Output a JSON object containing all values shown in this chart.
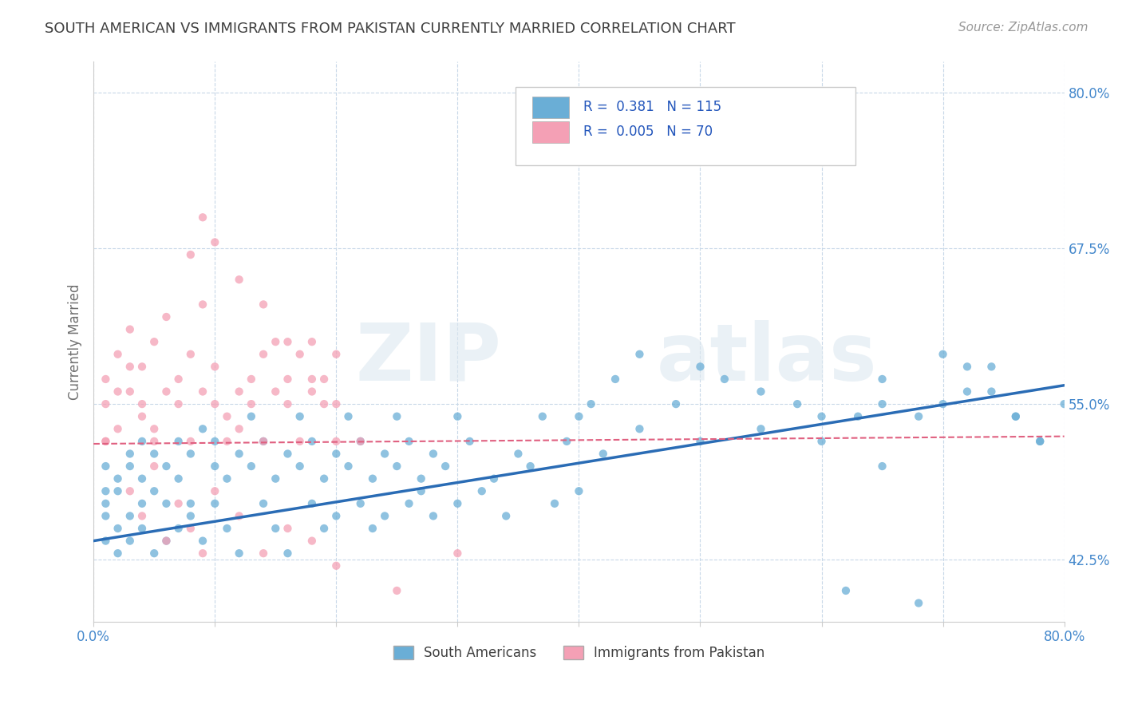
{
  "title": "SOUTH AMERICAN VS IMMIGRANTS FROM PAKISTAN CURRENTLY MARRIED CORRELATION CHART",
  "source": "Source: ZipAtlas.com",
  "ylabel": "Currently Married",
  "xmin": 0.0,
  "xmax": 0.8,
  "ymin": 0.375,
  "ymax": 0.825,
  "yticks": [
    0.425,
    0.55,
    0.675,
    0.8
  ],
  "ytick_labels": [
    "42.5%",
    "55.0%",
    "67.5%",
    "80.0%"
  ],
  "xticks": [
    0.0,
    0.1,
    0.2,
    0.3,
    0.4,
    0.5,
    0.6,
    0.7,
    0.8
  ],
  "xtick_labels": [
    "0.0%",
    "",
    "",
    "",
    "",
    "",
    "",
    "",
    "80.0%"
  ],
  "blue_color": "#6aaed6",
  "pink_color": "#f4a0b5",
  "blue_line_color": "#2a6cb5",
  "pink_line_color": "#e06080",
  "title_color": "#404040",
  "axis_label_color": "#707070",
  "tick_label_color": "#4488cc",
  "grid_color": "#c8d8e8",
  "legend_R_blue": "0.381",
  "legend_N_blue": "115",
  "legend_R_pink": "0.005",
  "legend_N_pink": "70",
  "legend_label_blue": "South Americans",
  "legend_label_pink": "Immigrants from Pakistan",
  "blue_trend_x": [
    0.0,
    0.8
  ],
  "blue_trend_y": [
    0.44,
    0.565
  ],
  "pink_trend_x": [
    0.0,
    0.8
  ],
  "pink_trend_y": [
    0.518,
    0.524
  ],
  "blue_scatter_x": [
    0.01,
    0.01,
    0.01,
    0.01,
    0.01,
    0.02,
    0.02,
    0.02,
    0.02,
    0.03,
    0.03,
    0.03,
    0.03,
    0.04,
    0.04,
    0.04,
    0.04,
    0.05,
    0.05,
    0.05,
    0.06,
    0.06,
    0.06,
    0.07,
    0.07,
    0.07,
    0.08,
    0.08,
    0.08,
    0.09,
    0.09,
    0.1,
    0.1,
    0.1,
    0.11,
    0.11,
    0.12,
    0.12,
    0.13,
    0.13,
    0.14,
    0.14,
    0.15,
    0.15,
    0.16,
    0.16,
    0.17,
    0.17,
    0.18,
    0.18,
    0.19,
    0.19,
    0.2,
    0.2,
    0.21,
    0.21,
    0.22,
    0.22,
    0.23,
    0.23,
    0.24,
    0.24,
    0.25,
    0.25,
    0.26,
    0.26,
    0.27,
    0.27,
    0.28,
    0.28,
    0.29,
    0.3,
    0.3,
    0.31,
    0.32,
    0.33,
    0.34,
    0.35,
    0.36,
    0.37,
    0.38,
    0.39,
    0.4,
    0.41,
    0.42,
    0.43,
    0.45,
    0.48,
    0.5,
    0.52,
    0.55,
    0.58,
    0.6,
    0.63,
    0.65,
    0.7,
    0.72,
    0.74,
    0.76,
    0.78,
    0.8,
    0.4,
    0.45,
    0.5,
    0.55,
    0.6,
    0.65,
    0.68,
    0.7,
    0.72,
    0.74,
    0.76,
    0.78,
    0.62,
    0.65,
    0.68
  ],
  "blue_scatter_y": [
    0.46,
    0.48,
    0.5,
    0.44,
    0.47,
    0.45,
    0.49,
    0.48,
    0.43,
    0.51,
    0.46,
    0.5,
    0.44,
    0.47,
    0.52,
    0.45,
    0.49,
    0.43,
    0.51,
    0.48,
    0.44,
    0.5,
    0.47,
    0.52,
    0.45,
    0.49,
    0.47,
    0.51,
    0.46,
    0.53,
    0.44,
    0.5,
    0.47,
    0.52,
    0.45,
    0.49,
    0.43,
    0.51,
    0.5,
    0.54,
    0.47,
    0.52,
    0.45,
    0.49,
    0.43,
    0.51,
    0.5,
    0.54,
    0.47,
    0.52,
    0.45,
    0.49,
    0.46,
    0.51,
    0.5,
    0.54,
    0.47,
    0.52,
    0.45,
    0.49,
    0.46,
    0.51,
    0.5,
    0.54,
    0.47,
    0.52,
    0.48,
    0.49,
    0.46,
    0.51,
    0.5,
    0.54,
    0.47,
    0.52,
    0.48,
    0.49,
    0.46,
    0.51,
    0.5,
    0.54,
    0.47,
    0.52,
    0.48,
    0.55,
    0.51,
    0.57,
    0.53,
    0.55,
    0.52,
    0.57,
    0.53,
    0.55,
    0.52,
    0.54,
    0.57,
    0.55,
    0.56,
    0.58,
    0.54,
    0.52,
    0.55,
    0.54,
    0.59,
    0.58,
    0.56,
    0.54,
    0.55,
    0.54,
    0.59,
    0.58,
    0.56,
    0.54,
    0.52,
    0.4,
    0.5,
    0.39
  ],
  "pink_scatter_x": [
    0.01,
    0.01,
    0.01,
    0.02,
    0.02,
    0.03,
    0.03,
    0.04,
    0.04,
    0.05,
    0.05,
    0.06,
    0.06,
    0.07,
    0.07,
    0.08,
    0.08,
    0.09,
    0.09,
    0.1,
    0.1,
    0.11,
    0.11,
    0.12,
    0.12,
    0.13,
    0.13,
    0.14,
    0.14,
    0.15,
    0.15,
    0.16,
    0.16,
    0.17,
    0.17,
    0.18,
    0.18,
    0.19,
    0.19,
    0.2,
    0.2,
    0.08,
    0.09,
    0.1,
    0.12,
    0.14,
    0.16,
    0.18,
    0.2,
    0.22,
    0.03,
    0.04,
    0.05,
    0.06,
    0.07,
    0.08,
    0.09,
    0.1,
    0.12,
    0.14,
    0.16,
    0.18,
    0.2,
    0.25,
    0.3,
    0.01,
    0.02,
    0.03,
    0.04,
    0.05
  ],
  "pink_scatter_y": [
    0.55,
    0.57,
    0.52,
    0.53,
    0.59,
    0.56,
    0.61,
    0.55,
    0.58,
    0.53,
    0.6,
    0.56,
    0.62,
    0.55,
    0.57,
    0.52,
    0.59,
    0.56,
    0.63,
    0.55,
    0.58,
    0.52,
    0.54,
    0.53,
    0.56,
    0.55,
    0.57,
    0.52,
    0.59,
    0.56,
    0.6,
    0.55,
    0.57,
    0.52,
    0.59,
    0.56,
    0.6,
    0.55,
    0.57,
    0.52,
    0.59,
    0.67,
    0.7,
    0.68,
    0.65,
    0.63,
    0.6,
    0.57,
    0.55,
    0.52,
    0.48,
    0.46,
    0.5,
    0.44,
    0.47,
    0.45,
    0.43,
    0.48,
    0.46,
    0.43,
    0.45,
    0.44,
    0.42,
    0.4,
    0.43,
    0.52,
    0.56,
    0.58,
    0.54,
    0.52
  ]
}
